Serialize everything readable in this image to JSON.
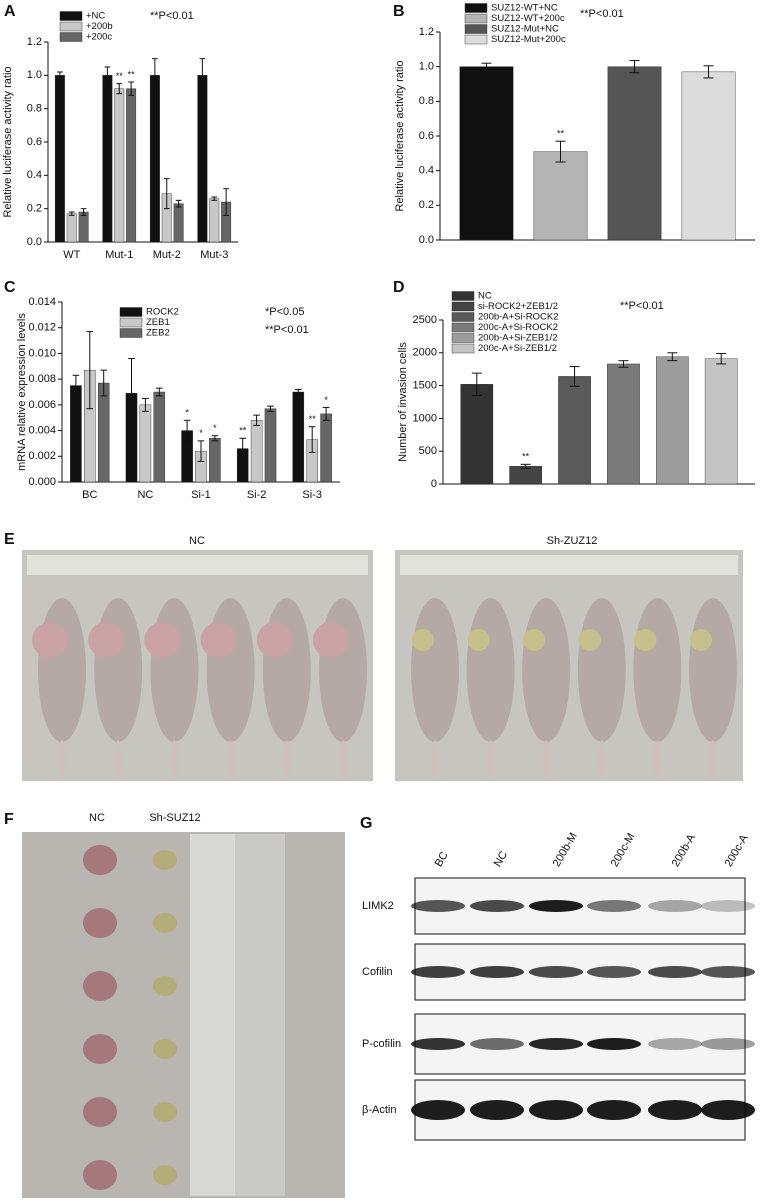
{
  "chart_data": [
    {
      "type": "bar",
      "panel": "A",
      "ylabel": "Relative luciferase activity ratio",
      "categories": [
        "WT",
        "Mut-1",
        "Mut-2",
        "Mut-3"
      ],
      "series": [
        {
          "name": "+NC",
          "color": "#111111",
          "values": [
            1.0,
            1.0,
            1.0,
            1.0
          ],
          "errors": [
            0.02,
            0.05,
            0.1,
            0.1
          ],
          "labels": [
            null,
            null,
            null,
            null
          ]
        },
        {
          "name": "+200b",
          "color": "#c8c8c8",
          "values": [
            0.17,
            0.92,
            0.29,
            0.26
          ],
          "errors": [
            0.01,
            0.03,
            0.09,
            0.01
          ],
          "labels": [
            null,
            "**",
            null,
            null
          ]
        },
        {
          "name": "+200c",
          "color": "#666666",
          "values": [
            0.18,
            0.92,
            0.23,
            0.24
          ],
          "errors": [
            0.02,
            0.04,
            0.02,
            0.08
          ],
          "labels": [
            null,
            "**",
            null,
            null
          ]
        }
      ],
      "ylim": [
        0,
        1.2
      ],
      "yticks": [
        {
          "value": 0,
          "label": "0.0"
        },
        {
          "value": 0.2,
          "label": "0.2"
        },
        {
          "value": 0.4,
          "label": "0.4"
        },
        {
          "value": 0.6,
          "label": "0.6"
        },
        {
          "value": 0.8,
          "label": "0.8"
        },
        {
          "value": 1.0,
          "label": "1.0"
        },
        {
          "value": 1.2,
          "label": "1.2"
        }
      ],
      "annotations": [
        "**P<0.01"
      ]
    },
    {
      "type": "bar",
      "panel": "B",
      "ylabel": "Relative luciferase activity ratio",
      "categories": [
        null
      ],
      "series": [
        {
          "name": "SUZ12-WT+NC",
          "color": "#111111",
          "values": [
            1.0
          ],
          "errors": [
            0.02
          ],
          "labels": [
            null
          ]
        },
        {
          "name": "SUZ12-WT+200c",
          "color": "#b4b4b4",
          "values": [
            0.51
          ],
          "errors": [
            0.06
          ],
          "labels": [
            "**"
          ]
        },
        {
          "name": "SUZ12-Mut+NC",
          "color": "#555555",
          "values": [
            1.0
          ],
          "errors": [
            0.035
          ],
          "labels": [
            null
          ]
        },
        {
          "name": "SUZ12-Mut+200c",
          "color": "#dcdcdc",
          "values": [
            0.97
          ],
          "errors": [
            0.035
          ],
          "labels": [
            null
          ]
        }
      ],
      "ylim": [
        0,
        1.2
      ],
      "yticks": [
        {
          "value": 0,
          "label": "0.0"
        },
        {
          "value": 0.2,
          "label": "0.2"
        },
        {
          "value": 0.4,
          "label": "0.4"
        },
        {
          "value": 0.6,
          "label": "0.6"
        },
        {
          "value": 0.8,
          "label": "0.8"
        },
        {
          "value": 1.0,
          "label": "1.0"
        },
        {
          "value": 1.2,
          "label": "1.2"
        }
      ],
      "annotations": [
        "**P<0.01"
      ]
    },
    {
      "type": "bar",
      "panel": "C",
      "ylabel": "mRNA relative expression levels",
      "categories": [
        "BC",
        "NC",
        "Si-1",
        "Si-2",
        "Si-3"
      ],
      "series": [
        {
          "name": "ROCK2",
          "color": "#111111",
          "values": [
            0.0075,
            0.0069,
            0.004,
            0.0026,
            0.007
          ],
          "errors": [
            0.0008,
            0.0027,
            0.0008,
            0.0008,
            0.0002
          ],
          "labels": [
            null,
            null,
            "*",
            "**",
            null
          ]
        },
        {
          "name": "ZEB1",
          "color": "#c8c8c8",
          "values": [
            0.0087,
            0.006,
            0.0024,
            0.0048,
            0.0033
          ],
          "errors": [
            0.003,
            0.0005,
            0.0008,
            0.0004,
            0.001
          ],
          "labels": [
            null,
            null,
            "*",
            null,
            "**"
          ]
        },
        {
          "name": "ZEB2",
          "color": "#666666",
          "values": [
            0.0077,
            0.007,
            0.0034,
            0.0057,
            0.0053
          ],
          "errors": [
            0.001,
            0.0003,
            0.0002,
            0.0002,
            0.0005
          ],
          "labels": [
            null,
            null,
            "*",
            null,
            "*"
          ]
        }
      ],
      "ylim": [
        0,
        0.014
      ],
      "yticks": [
        {
          "value": 0,
          "label": "0.000"
        },
        {
          "value": 0.002,
          "label": "0.002"
        },
        {
          "value": 0.004,
          "label": "0.004"
        },
        {
          "value": 0.006,
          "label": "0.006"
        },
        {
          "value": 0.008,
          "label": "0.008"
        },
        {
          "value": 0.01,
          "label": "0.010"
        },
        {
          "value": 0.012,
          "label": "0.012"
        },
        {
          "value": 0.014,
          "label": "0.014"
        }
      ],
      "annotations": [
        "*P<0.05",
        "**P<0.01"
      ]
    },
    {
      "type": "bar",
      "panel": "D",
      "ylabel": "Number of invasion cells",
      "categories": [
        null
      ],
      "series": [
        {
          "name": "NC",
          "color": "#333333",
          "values": [
            1520
          ],
          "errors": [
            170
          ],
          "labels": [
            null
          ]
        },
        {
          "name": "si-ROCK2+ZEB1/2",
          "color": "#444444",
          "values": [
            270
          ],
          "errors": [
            30
          ],
          "labels": [
            "**"
          ]
        },
        {
          "name": "200b-A+Si-ROCK2",
          "color": "#5a5a5a",
          "values": [
            1640
          ],
          "errors": [
            150
          ],
          "labels": [
            null
          ]
        },
        {
          "name": "200c-A+Si-ROCK2",
          "color": "#7a7a7a",
          "values": [
            1830
          ],
          "errors": [
            50
          ],
          "labels": [
            null
          ]
        },
        {
          "name": "200b-A+Si-ZEB1/2",
          "color": "#9c9c9c",
          "values": [
            1940
          ],
          "errors": [
            60
          ],
          "labels": [
            null
          ]
        },
        {
          "name": "200c-A+Si-ZEB1/2",
          "color": "#c4c4c4",
          "values": [
            1910
          ],
          "errors": [
            80
          ],
          "labels": [
            null
          ]
        }
      ],
      "ylim": [
        0,
        2500
      ],
      "yticks": [
        0,
        500,
        1000,
        1500,
        2000,
        2500
      ],
      "annotations": [
        "**P<0.01"
      ]
    }
  ],
  "photo_e": {
    "panel": "E",
    "labels": [
      "NC",
      "Sh-ZUZ12"
    ]
  },
  "photo_f": {
    "panel": "F",
    "labels": [
      "NC",
      "Sh-SUZ12"
    ]
  },
  "blot": {
    "panel": "G",
    "lanes": [
      "BC",
      "NC",
      "200b-M",
      "200c-M",
      "200b-A",
      "200c-A"
    ],
    "rows": [
      "LIMK2",
      "Cofilin",
      "P-cofilin",
      "β-Actin"
    ]
  }
}
